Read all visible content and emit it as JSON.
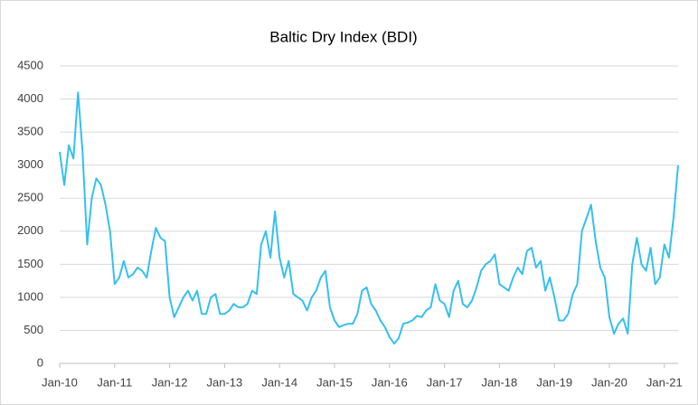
{
  "chart_data": {
    "type": "line",
    "title": "Baltic Dry Index (BDI)",
    "x": [
      "2010-01",
      "2010-02",
      "2010-03",
      "2010-04",
      "2010-05",
      "2010-06",
      "2010-07",
      "2010-08",
      "2010-09",
      "2010-10",
      "2010-11",
      "2010-12",
      "2011-01",
      "2011-02",
      "2011-03",
      "2011-04",
      "2011-05",
      "2011-06",
      "2011-07",
      "2011-08",
      "2011-09",
      "2011-10",
      "2011-11",
      "2011-12",
      "2012-01",
      "2012-02",
      "2012-03",
      "2012-04",
      "2012-05",
      "2012-06",
      "2012-07",
      "2012-08",
      "2012-09",
      "2012-10",
      "2012-11",
      "2012-12",
      "2013-01",
      "2013-02",
      "2013-03",
      "2013-04",
      "2013-05",
      "2013-06",
      "2013-07",
      "2013-08",
      "2013-09",
      "2013-10",
      "2013-11",
      "2013-12",
      "2014-01",
      "2014-02",
      "2014-03",
      "2014-04",
      "2014-05",
      "2014-06",
      "2014-07",
      "2014-08",
      "2014-09",
      "2014-10",
      "2014-11",
      "2014-12",
      "2015-01",
      "2015-02",
      "2015-03",
      "2015-04",
      "2015-05",
      "2015-06",
      "2015-07",
      "2015-08",
      "2015-09",
      "2015-10",
      "2015-11",
      "2015-12",
      "2016-01",
      "2016-02",
      "2016-03",
      "2016-04",
      "2016-05",
      "2016-06",
      "2016-07",
      "2016-08",
      "2016-09",
      "2016-10",
      "2016-11",
      "2016-12",
      "2017-01",
      "2017-02",
      "2017-03",
      "2017-04",
      "2017-05",
      "2017-06",
      "2017-07",
      "2017-08",
      "2017-09",
      "2017-10",
      "2017-11",
      "2017-12",
      "2018-01",
      "2018-02",
      "2018-03",
      "2018-04",
      "2018-05",
      "2018-06",
      "2018-07",
      "2018-08",
      "2018-09",
      "2018-10",
      "2018-11",
      "2018-12",
      "2019-01",
      "2019-02",
      "2019-03",
      "2019-04",
      "2019-05",
      "2019-06",
      "2019-07",
      "2019-08",
      "2019-09",
      "2019-10",
      "2019-11",
      "2019-12",
      "2020-01",
      "2020-02",
      "2020-03",
      "2020-04",
      "2020-05",
      "2020-06",
      "2020-07",
      "2020-08",
      "2020-09",
      "2020-10",
      "2020-11",
      "2020-12",
      "2021-01",
      "2021-02",
      "2021-03",
      "2021-04"
    ],
    "series": [
      {
        "name": "BDI",
        "color": "#35c0ef",
        "values": [
          3200,
          2700,
          3300,
          3100,
          4100,
          3200,
          1800,
          2500,
          2800,
          2700,
          2400,
          2000,
          1200,
          1300,
          1550,
          1300,
          1350,
          1450,
          1400,
          1300,
          1700,
          2050,
          1900,
          1850,
          1000,
          700,
          850,
          1000,
          1100,
          950,
          1100,
          750,
          750,
          1000,
          1050,
          750,
          750,
          800,
          900,
          850,
          850,
          900,
          1100,
          1050,
          1800,
          2000,
          1600,
          2300,
          1600,
          1300,
          1550,
          1050,
          1000,
          950,
          800,
          1000,
          1100,
          1300,
          1400,
          850,
          650,
          550,
          580,
          600,
          600,
          750,
          1100,
          1150,
          900,
          800,
          650,
          550,
          400,
          300,
          380,
          600,
          620,
          650,
          720,
          700,
          800,
          850,
          1200,
          950,
          900,
          700,
          1100,
          1250,
          900,
          850,
          950,
          1150,
          1400,
          1500,
          1550,
          1650,
          1200,
          1150,
          1100,
          1300,
          1450,
          1350,
          1700,
          1750,
          1450,
          1550,
          1100,
          1300,
          1000,
          650,
          650,
          750,
          1050,
          1200,
          2000,
          2200,
          2400,
          1850,
          1450,
          1300,
          700,
          450,
          600,
          680,
          450,
          1500,
          1900,
          1500,
          1400,
          1750,
          1200,
          1300,
          1800,
          1600,
          2200,
          3000
        ]
      }
    ],
    "xlim": [
      "2010-01",
      "2021-04"
    ],
    "xticks": [
      {
        "value": "2010-01",
        "label": "Jan-10"
      },
      {
        "value": "2011-01",
        "label": "Jan-11"
      },
      {
        "value": "2012-01",
        "label": "Jan-12"
      },
      {
        "value": "2013-01",
        "label": "Jan-13"
      },
      {
        "value": "2014-01",
        "label": "Jan-14"
      },
      {
        "value": "2015-01",
        "label": "Jan-15"
      },
      {
        "value": "2016-01",
        "label": "Jan-16"
      },
      {
        "value": "2017-01",
        "label": "Jan-17"
      },
      {
        "value": "2018-01",
        "label": "Jan-18"
      },
      {
        "value": "2019-01",
        "label": "Jan-19"
      },
      {
        "value": "2020-01",
        "label": "Jan-20"
      },
      {
        "value": "2021-01",
        "label": "Jan-21"
      }
    ],
    "ylim": [
      0,
      4500
    ],
    "yticks": [
      0,
      500,
      1000,
      1500,
      2000,
      2500,
      3000,
      3500,
      4000,
      4500
    ],
    "grid": true
  }
}
